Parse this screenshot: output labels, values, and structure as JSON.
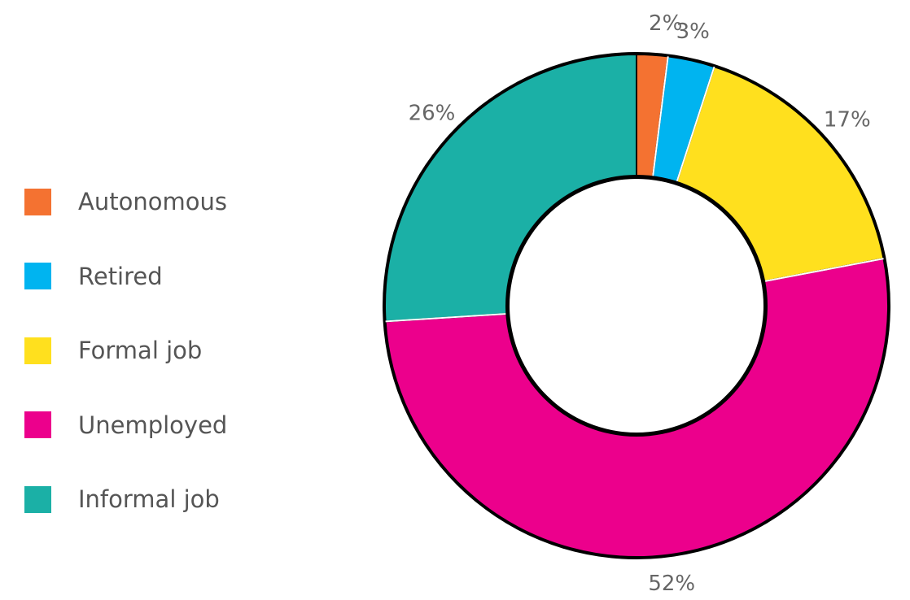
{
  "chart_data": {
    "type": "pie",
    "variant": "donut",
    "legend": "left",
    "series": [
      {
        "name": "Autonomous",
        "value": 2,
        "label": "2%",
        "color": "#F47231"
      },
      {
        "name": "Retired",
        "value": 3,
        "label": "3%",
        "color": "#00B4F0"
      },
      {
        "name": "Formal job",
        "value": 17,
        "label": "17%",
        "color": "#FFE01E"
      },
      {
        "name": "Unemployed",
        "value": 52,
        "label": "52%",
        "color": "#EC008C"
      },
      {
        "name": "Informal job",
        "value": 26,
        "label": "26%",
        "color": "#1BB0A6"
      }
    ]
  }
}
